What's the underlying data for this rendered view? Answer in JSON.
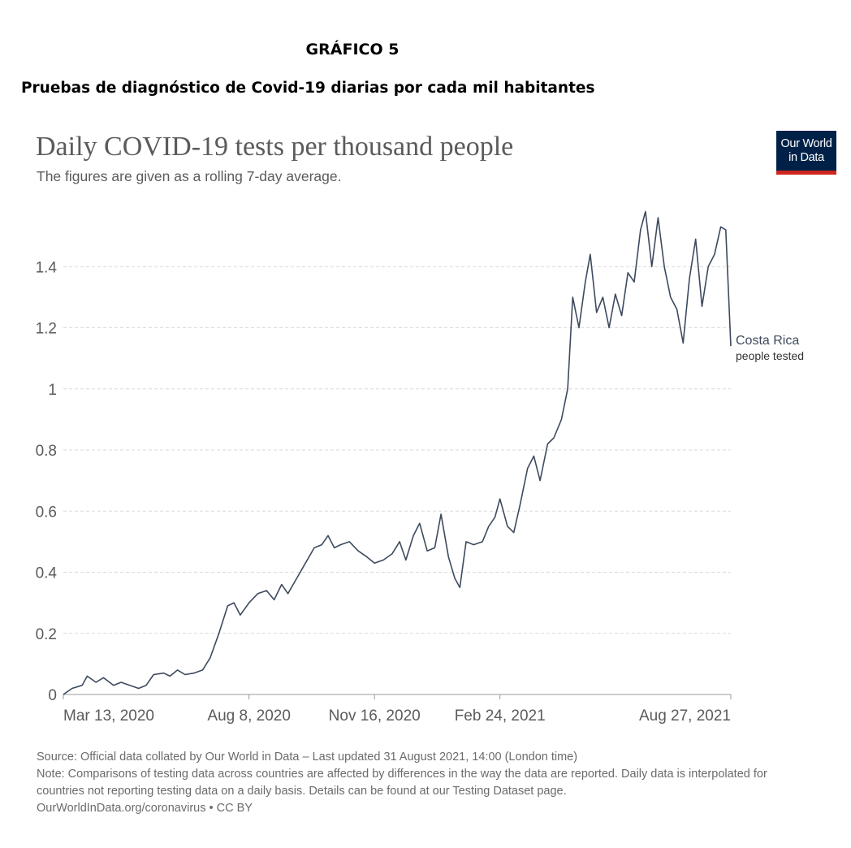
{
  "document": {
    "label": "GRÁFICO 5",
    "title": "Pruebas de diagnóstico de Covid-19 diarias por cada mil habitantes"
  },
  "logo": {
    "line1": "Our World",
    "line2": "in Data"
  },
  "colors": {
    "line": "#3d4a5e",
    "grid": "#d9d9d9",
    "axis_text": "#5b5b5b",
    "logo_bg": "#002147",
    "logo_bar": "#ce261e"
  },
  "chart_data": {
    "type": "line",
    "title": "Daily COVID-19 tests per thousand people",
    "subtitle": "The figures are given as a rolling 7-day average.",
    "xlabel": "",
    "ylabel": "",
    "ylim": [
      0,
      1.6
    ],
    "yticks": [
      0,
      0.2,
      0.4,
      0.6,
      0.8,
      1,
      1.2,
      1.4
    ],
    "ytick_labels": [
      "0",
      "0.2",
      "0.4",
      "0.6",
      "0.8",
      "1",
      "1.2",
      "1.4"
    ],
    "xlim": [
      "2020-03-13",
      "2021-08-27"
    ],
    "xticks": [
      "2020-03-13",
      "2020-08-08",
      "2020-11-16",
      "2021-02-24",
      "2021-08-27"
    ],
    "xtick_labels": [
      "Mar 13, 2020",
      "Aug 8, 2020",
      "Nov 16, 2020",
      "Feb 24, 2021",
      "Aug 27, 2021"
    ],
    "grid": "horizontal dashed",
    "legend": "right end label",
    "series": [
      {
        "name": "Costa Rica",
        "sublabel": "people tested",
        "points": [
          [
            "2020-03-13",
            0.0
          ],
          [
            "2020-03-20",
            0.02
          ],
          [
            "2020-03-28",
            0.03
          ],
          [
            "2020-04-01",
            0.06
          ],
          [
            "2020-04-08",
            0.04
          ],
          [
            "2020-04-14",
            0.055
          ],
          [
            "2020-04-22",
            0.03
          ],
          [
            "2020-04-28",
            0.04
          ],
          [
            "2020-05-05",
            0.03
          ],
          [
            "2020-05-12",
            0.02
          ],
          [
            "2020-05-18",
            0.03
          ],
          [
            "2020-05-24",
            0.065
          ],
          [
            "2020-06-01",
            0.07
          ],
          [
            "2020-06-06",
            0.06
          ],
          [
            "2020-06-12",
            0.08
          ],
          [
            "2020-06-18",
            0.065
          ],
          [
            "2020-06-25",
            0.07
          ],
          [
            "2020-07-02",
            0.08
          ],
          [
            "2020-07-08",
            0.12
          ],
          [
            "2020-07-15",
            0.2
          ],
          [
            "2020-07-22",
            0.29
          ],
          [
            "2020-07-27",
            0.3
          ],
          [
            "2020-08-01",
            0.26
          ],
          [
            "2020-08-08",
            0.3
          ],
          [
            "2020-08-15",
            0.33
          ],
          [
            "2020-08-22",
            0.34
          ],
          [
            "2020-08-28",
            0.31
          ],
          [
            "2020-09-03",
            0.36
          ],
          [
            "2020-09-08",
            0.33
          ],
          [
            "2020-09-15",
            0.38
          ],
          [
            "2020-09-22",
            0.43
          ],
          [
            "2020-09-29",
            0.48
          ],
          [
            "2020-10-05",
            0.49
          ],
          [
            "2020-10-10",
            0.52
          ],
          [
            "2020-10-15",
            0.48
          ],
          [
            "2020-10-20",
            0.49
          ],
          [
            "2020-10-27",
            0.5
          ],
          [
            "2020-11-03",
            0.47
          ],
          [
            "2020-11-10",
            0.45
          ],
          [
            "2020-11-16",
            0.43
          ],
          [
            "2020-11-23",
            0.44
          ],
          [
            "2020-11-30",
            0.46
          ],
          [
            "2020-12-06",
            0.5
          ],
          [
            "2020-12-11",
            0.44
          ],
          [
            "2020-12-17",
            0.52
          ],
          [
            "2020-12-22",
            0.56
          ],
          [
            "2020-12-28",
            0.47
          ],
          [
            "2021-01-03",
            0.48
          ],
          [
            "2021-01-08",
            0.59
          ],
          [
            "2021-01-14",
            0.45
          ],
          [
            "2021-01-19",
            0.38
          ],
          [
            "2021-01-23",
            0.35
          ],
          [
            "2021-01-28",
            0.5
          ],
          [
            "2021-02-03",
            0.49
          ],
          [
            "2021-02-10",
            0.5
          ],
          [
            "2021-02-15",
            0.55
          ],
          [
            "2021-02-20",
            0.58
          ],
          [
            "2021-02-24",
            0.64
          ],
          [
            "2021-03-02",
            0.55
          ],
          [
            "2021-03-07",
            0.53
          ],
          [
            "2021-03-12",
            0.62
          ],
          [
            "2021-03-18",
            0.74
          ],
          [
            "2021-03-23",
            0.78
          ],
          [
            "2021-03-28",
            0.7
          ],
          [
            "2021-04-03",
            0.82
          ],
          [
            "2021-04-08",
            0.84
          ],
          [
            "2021-04-14",
            0.9
          ],
          [
            "2021-04-19",
            1.0
          ],
          [
            "2021-04-23",
            1.3
          ],
          [
            "2021-04-28",
            1.2
          ],
          [
            "2021-05-03",
            1.35
          ],
          [
            "2021-05-07",
            1.44
          ],
          [
            "2021-05-12",
            1.25
          ],
          [
            "2021-05-17",
            1.3
          ],
          [
            "2021-05-22",
            1.2
          ],
          [
            "2021-05-27",
            1.31
          ],
          [
            "2021-06-01",
            1.24
          ],
          [
            "2021-06-06",
            1.38
          ],
          [
            "2021-06-11",
            1.35
          ],
          [
            "2021-06-16",
            1.52
          ],
          [
            "2021-06-20",
            1.58
          ],
          [
            "2021-06-25",
            1.4
          ],
          [
            "2021-06-30",
            1.56
          ],
          [
            "2021-07-05",
            1.4
          ],
          [
            "2021-07-10",
            1.3
          ],
          [
            "2021-07-15",
            1.26
          ],
          [
            "2021-07-20",
            1.15
          ],
          [
            "2021-07-25",
            1.36
          ],
          [
            "2021-07-30",
            1.49
          ],
          [
            "2021-08-04",
            1.27
          ],
          [
            "2021-08-09",
            1.4
          ],
          [
            "2021-08-14",
            1.44
          ],
          [
            "2021-08-19",
            1.53
          ],
          [
            "2021-08-23",
            1.52
          ],
          [
            "2021-08-27",
            1.14
          ]
        ]
      }
    ]
  },
  "footer": {
    "source": "Source: Official data collated by Our World in Data – Last updated 31 August 2021, 14:00 (London time)",
    "note_line1": "Note: Comparisons of testing data across countries are affected by differences in the way the data are reported. Daily data is interpolated for",
    "note_line2": "countries not reporting testing data on a daily basis. Details can be found at our Testing Dataset page.",
    "credit": "OurWorldInData.org/coronavirus • CC BY"
  }
}
